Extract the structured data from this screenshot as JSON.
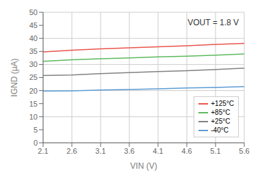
{
  "chart_data": {
    "type": "line",
    "annotation": "VOUT = 1.8 V",
    "xlabel": "VIN (V)",
    "ylabel": "IGND (μA)",
    "xlim": [
      2.1,
      5.6
    ],
    "ylim": [
      0,
      50
    ],
    "xticks": [
      2.1,
      2.6,
      3.1,
      3.6,
      4.1,
      4.6,
      5.1,
      5.6
    ],
    "yticks": [
      0,
      5,
      10,
      15,
      20,
      25,
      30,
      35,
      40,
      45,
      50
    ],
    "x": [
      2.1,
      2.6,
      3.1,
      3.6,
      4.1,
      4.6,
      5.1,
      5.6
    ],
    "series": [
      {
        "name": "+125°C",
        "color": "#e8534a",
        "values": [
          34.8,
          35.5,
          36.0,
          36.4,
          36.8,
          37.2,
          37.7,
          38.1
        ]
      },
      {
        "name": "+85°C",
        "color": "#5cb85c",
        "values": [
          31.2,
          31.8,
          32.2,
          32.5,
          32.9,
          33.2,
          33.6,
          34.0
        ]
      },
      {
        "name": "+25°C",
        "color": "#808080",
        "values": [
          25.8,
          26.0,
          26.5,
          26.9,
          27.3,
          27.6,
          28.1,
          28.6
        ]
      },
      {
        "name": "-40°C",
        "color": "#5b9bd5",
        "values": [
          19.8,
          19.9,
          20.2,
          20.4,
          20.7,
          21.0,
          21.2,
          21.5
        ]
      }
    ],
    "grid": true,
    "legend": "lower right"
  }
}
